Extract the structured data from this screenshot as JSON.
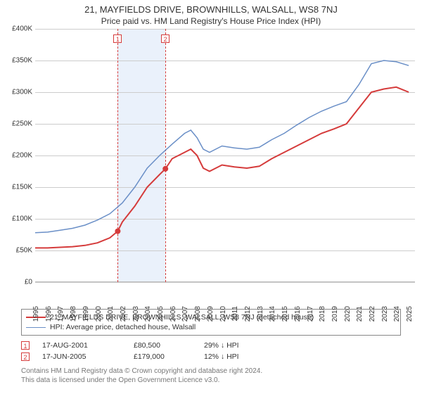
{
  "title": "21, MAYFIELDS DRIVE, BROWNHILLS, WALSALL, WS8 7NJ",
  "subtitle": "Price paid vs. HM Land Registry's House Price Index (HPI)",
  "chart": {
    "type": "line",
    "background_color": "#ffffff",
    "grid_color": "#cccccc",
    "axis_color": "#bbbbbb",
    "ylim": [
      0,
      400000
    ],
    "ytick_step": 50000,
    "ytick_labels": [
      "£0",
      "£50K",
      "£100K",
      "£150K",
      "£200K",
      "£250K",
      "£300K",
      "£350K",
      "£400K"
    ],
    "xlim": [
      1995,
      2025.5
    ],
    "xtick_years": [
      1995,
      1996,
      1997,
      1998,
      1999,
      2000,
      2001,
      2002,
      2003,
      2004,
      2005,
      2006,
      2007,
      2008,
      2009,
      2010,
      2011,
      2012,
      2013,
      2014,
      2015,
      2016,
      2017,
      2018,
      2019,
      2020,
      2021,
      2022,
      2023,
      2024,
      2025
    ],
    "band": {
      "start": 2001.63,
      "end": 2005.46,
      "color": "#eaf1fb"
    },
    "events": [
      {
        "label": "1",
        "x": 2001.63,
        "dash_color": "#d53b3b",
        "box_border": "#d53b3b",
        "box_text": "#d53b3b"
      },
      {
        "label": "2",
        "x": 2005.46,
        "dash_color": "#d53b3b",
        "box_border": "#d53b3b",
        "box_text": "#d53b3b"
      }
    ],
    "series": [
      {
        "name": "price_paid",
        "label": "21, MAYFIELDS DRIVE, BROWNHILLS, WALSALL, WS8 7NJ (detached house)",
        "color": "#d53b3b",
        "line_width": 2,
        "data": [
          [
            1995,
            54000
          ],
          [
            1996,
            54000
          ],
          [
            1997,
            55000
          ],
          [
            1998,
            56000
          ],
          [
            1999,
            58000
          ],
          [
            2000,
            62000
          ],
          [
            2001,
            70000
          ],
          [
            2001.63,
            80500
          ],
          [
            2002,
            95000
          ],
          [
            2003,
            120000
          ],
          [
            2004,
            150000
          ],
          [
            2005,
            170000
          ],
          [
            2005.46,
            179000
          ],
          [
            2006,
            195000
          ],
          [
            2007,
            205000
          ],
          [
            2007.5,
            210000
          ],
          [
            2008,
            200000
          ],
          [
            2008.5,
            180000
          ],
          [
            2009,
            175000
          ],
          [
            2010,
            185000
          ],
          [
            2011,
            182000
          ],
          [
            2012,
            180000
          ],
          [
            2013,
            183000
          ],
          [
            2014,
            195000
          ],
          [
            2015,
            205000
          ],
          [
            2016,
            215000
          ],
          [
            2017,
            225000
          ],
          [
            2018,
            235000
          ],
          [
            2019,
            242000
          ],
          [
            2020,
            250000
          ],
          [
            2021,
            275000
          ],
          [
            2022,
            300000
          ],
          [
            2023,
            305000
          ],
          [
            2024,
            308000
          ],
          [
            2025,
            300000
          ]
        ],
        "sale_points": [
          {
            "x": 2001.63,
            "y": 80500
          },
          {
            "x": 2005.46,
            "y": 179000
          }
        ]
      },
      {
        "name": "hpi",
        "label": "HPI: Average price, detached house, Walsall",
        "color": "#6a8fc7",
        "line_width": 1.5,
        "data": [
          [
            1995,
            78000
          ],
          [
            1996,
            79000
          ],
          [
            1997,
            82000
          ],
          [
            1998,
            85000
          ],
          [
            1999,
            90000
          ],
          [
            2000,
            98000
          ],
          [
            2001,
            108000
          ],
          [
            2002,
            125000
          ],
          [
            2003,
            150000
          ],
          [
            2004,
            180000
          ],
          [
            2005,
            200000
          ],
          [
            2006,
            218000
          ],
          [
            2007,
            235000
          ],
          [
            2007.5,
            240000
          ],
          [
            2008,
            228000
          ],
          [
            2008.5,
            210000
          ],
          [
            2009,
            205000
          ],
          [
            2010,
            215000
          ],
          [
            2011,
            212000
          ],
          [
            2012,
            210000
          ],
          [
            2013,
            213000
          ],
          [
            2014,
            225000
          ],
          [
            2015,
            235000
          ],
          [
            2016,
            248000
          ],
          [
            2017,
            260000
          ],
          [
            2018,
            270000
          ],
          [
            2019,
            278000
          ],
          [
            2020,
            285000
          ],
          [
            2021,
            312000
          ],
          [
            2022,
            345000
          ],
          [
            2023,
            350000
          ],
          [
            2024,
            348000
          ],
          [
            2025,
            342000
          ]
        ]
      }
    ]
  },
  "legend": {
    "border_color": "#888888"
  },
  "sales": [
    {
      "label": "1",
      "date": "17-AUG-2001",
      "price": "£80,500",
      "rel": "29% ↓ HPI",
      "color": "#d53b3b"
    },
    {
      "label": "2",
      "date": "17-JUN-2005",
      "price": "£179,000",
      "rel": "12% ↓ HPI",
      "color": "#d53b3b"
    }
  ],
  "footnote_line1": "Contains HM Land Registry data © Crown copyright and database right 2024.",
  "footnote_line2": "This data is licensed under the Open Government Licence v3.0.",
  "colors": {
    "text": "#333333",
    "muted": "#777777"
  }
}
